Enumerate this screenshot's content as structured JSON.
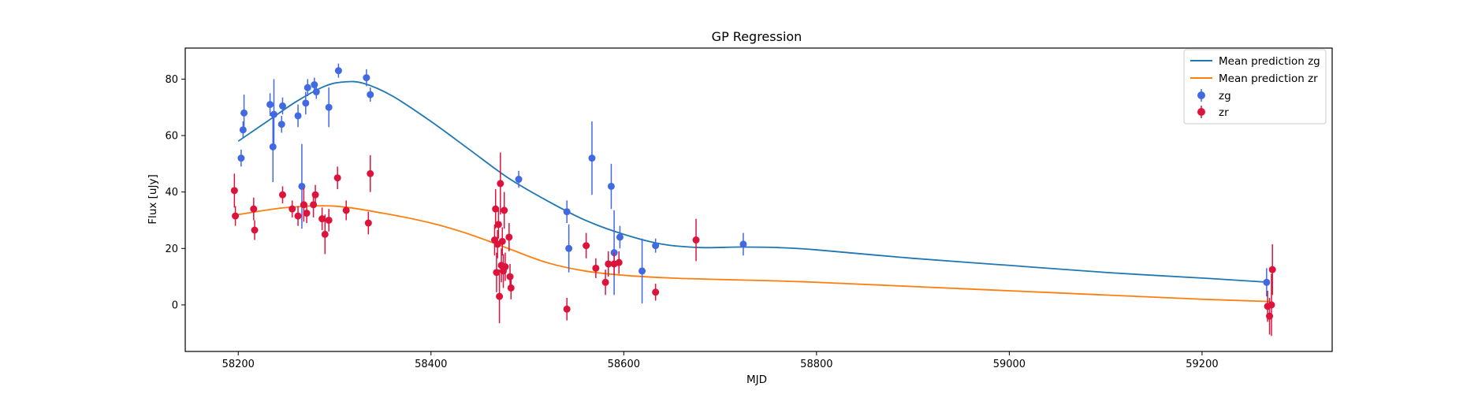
{
  "chart_data": {
    "type": "scatter",
    "title": "GP Regression",
    "xlabel": "MJD",
    "ylabel": "Flux [uJy]",
    "xlim": [
      58145,
      59335
    ],
    "ylim": [
      -16.5,
      91
    ],
    "xticks": [
      58200,
      58400,
      58600,
      58800,
      59000,
      59200
    ],
    "yticks": [
      0,
      20,
      40,
      60,
      80
    ],
    "grid": false,
    "legend_position": "top-right",
    "lines": [
      {
        "name": "Mean prediction zg",
        "color": "#1f77b4",
        "x": [
          58200,
          58230,
          58260,
          58290,
          58310,
          58330,
          58360,
          58400,
          58440,
          58480,
          58520,
          58560,
          58600,
          58640,
          58680,
          58720,
          58760,
          58800,
          58900,
          59000,
          59100,
          59200,
          59270
        ],
        "y": [
          58,
          65,
          72,
          77.5,
          79,
          78.5,
          74,
          65,
          55,
          45,
          37,
          30,
          25,
          21.5,
          20.3,
          20.5,
          20.3,
          19.5,
          16.5,
          14,
          11.5,
          9.5,
          8
        ]
      },
      {
        "name": "Mean prediction zr",
        "color": "#ff7f0e",
        "x": [
          58200,
          58250,
          58300,
          58350,
          58400,
          58440,
          58480,
          58520,
          58560,
          58600,
          58650,
          58700,
          58760,
          58800,
          58900,
          59000,
          59100,
          59200,
          59270
        ],
        "y": [
          32,
          34.5,
          35,
          32.5,
          29,
          25,
          20,
          15,
          12,
          10.5,
          9.5,
          9,
          8.5,
          8,
          6.5,
          5,
          3.5,
          2,
          1.2
        ]
      }
    ],
    "series": [
      {
        "name": "zg",
        "color": "#4169e1",
        "points": [
          {
            "x": 58203,
            "y": 52,
            "err": 3
          },
          {
            "x": 58205,
            "y": 62,
            "err": 3
          },
          {
            "x": 58206,
            "y": 68,
            "err": 6.5
          },
          {
            "x": 58233,
            "y": 71,
            "err": 4
          },
          {
            "x": 58236,
            "y": 56,
            "err": 12.5
          },
          {
            "x": 58237,
            "y": 67.5,
            "err": 12.5
          },
          {
            "x": 58245,
            "y": 64,
            "err": 3
          },
          {
            "x": 58246,
            "y": 70.5,
            "err": 3
          },
          {
            "x": 58262,
            "y": 67,
            "err": 4
          },
          {
            "x": 58266,
            "y": 42,
            "err": 15
          },
          {
            "x": 58270,
            "y": 71.5,
            "err": 4
          },
          {
            "x": 58272,
            "y": 77,
            "err": 3
          },
          {
            "x": 58279,
            "y": 78,
            "err": 2.5
          },
          {
            "x": 58281,
            "y": 75.5,
            "err": 2.5
          },
          {
            "x": 58294,
            "y": 70,
            "err": 7
          },
          {
            "x": 58304,
            "y": 83,
            "err": 2.5
          },
          {
            "x": 58333,
            "y": 80.5,
            "err": 3
          },
          {
            "x": 58337,
            "y": 74.5,
            "err": 2.5
          },
          {
            "x": 58491,
            "y": 44.5,
            "err": 3
          },
          {
            "x": 58541,
            "y": 33,
            "err": 4
          },
          {
            "x": 58543,
            "y": 20,
            "err": 8.5
          },
          {
            "x": 58567,
            "y": 52,
            "err": 13
          },
          {
            "x": 58587,
            "y": 42,
            "err": 8
          },
          {
            "x": 58590,
            "y": 18.5,
            "err": 15
          },
          {
            "x": 58596,
            "y": 24,
            "err": 4
          },
          {
            "x": 58619,
            "y": 12,
            "err": 11.5
          },
          {
            "x": 58633,
            "y": 21,
            "err": 2.5
          },
          {
            "x": 58724,
            "y": 21.5,
            "err": 4
          },
          {
            "x": 59267,
            "y": 8,
            "err": 5
          }
        ]
      },
      {
        "name": "zr",
        "color": "#dc143c",
        "points": [
          {
            "x": 58196,
            "y": 40.5,
            "err": 6
          },
          {
            "x": 58197,
            "y": 31.5,
            "err": 3.5
          },
          {
            "x": 58216,
            "y": 34,
            "err": 4
          },
          {
            "x": 58217,
            "y": 26.5,
            "err": 3.5
          },
          {
            "x": 58246,
            "y": 39,
            "err": 3
          },
          {
            "x": 58256,
            "y": 34,
            "err": 3
          },
          {
            "x": 58262,
            "y": 31.5,
            "err": 3.5
          },
          {
            "x": 58268,
            "y": 35.5,
            "err": 6
          },
          {
            "x": 58271,
            "y": 32.5,
            "err": 3.5
          },
          {
            "x": 58278,
            "y": 35.5,
            "err": 4.5
          },
          {
            "x": 58280,
            "y": 39,
            "err": 3.5
          },
          {
            "x": 58287,
            "y": 30.5,
            "err": 4
          },
          {
            "x": 58290,
            "y": 25,
            "err": 7
          },
          {
            "x": 58294,
            "y": 30,
            "err": 4
          },
          {
            "x": 58303,
            "y": 45,
            "err": 4
          },
          {
            "x": 58312,
            "y": 33.5,
            "err": 3.5
          },
          {
            "x": 58335,
            "y": 29,
            "err": 4
          },
          {
            "x": 58337,
            "y": 46.5,
            "err": 6.5
          },
          {
            "x": 58466,
            "y": 23,
            "err": 5.5
          },
          {
            "x": 58467,
            "y": 34,
            "err": 7
          },
          {
            "x": 58468,
            "y": 11.5,
            "err": 7
          },
          {
            "x": 58469,
            "y": 21.5,
            "err": 5
          },
          {
            "x": 58470,
            "y": 28.5,
            "err": 5
          },
          {
            "x": 58471,
            "y": 3,
            "err": 9.5
          },
          {
            "x": 58472,
            "y": 43,
            "err": 11
          },
          {
            "x": 58473,
            "y": 14,
            "err": 6
          },
          {
            "x": 58474,
            "y": 22.5,
            "err": 5
          },
          {
            "x": 58475,
            "y": 12,
            "err": 6
          },
          {
            "x": 58476,
            "y": 33.5,
            "err": 6.5
          },
          {
            "x": 58477,
            "y": 13.5,
            "err": 5
          },
          {
            "x": 58481,
            "y": 24,
            "err": 5
          },
          {
            "x": 58482,
            "y": 10,
            "err": 4.5
          },
          {
            "x": 58483,
            "y": 6,
            "err": 4
          },
          {
            "x": 58541,
            "y": -1.5,
            "err": 4
          },
          {
            "x": 58561,
            "y": 21,
            "err": 4.5
          },
          {
            "x": 58571,
            "y": 13,
            "err": 3.5
          },
          {
            "x": 58581,
            "y": 8,
            "err": 4.5
          },
          {
            "x": 58584,
            "y": 14.5,
            "err": 4.5
          },
          {
            "x": 58590,
            "y": 14.5,
            "err": 4
          },
          {
            "x": 58595,
            "y": 15,
            "err": 4
          },
          {
            "x": 58633,
            "y": 4.5,
            "err": 3
          },
          {
            "x": 58675,
            "y": 23,
            "err": 7.5
          },
          {
            "x": 59268,
            "y": -0.5,
            "err": 5.5
          },
          {
            "x": 59270,
            "y": -4,
            "err": 6.5
          },
          {
            "x": 59272,
            "y": 0,
            "err": 11
          },
          {
            "x": 59273,
            "y": 12.5,
            "err": 9
          }
        ]
      }
    ]
  },
  "legend": {
    "zg_line": "Mean prediction zg",
    "zr_line": "Mean prediction zr",
    "zg_points": "zg",
    "zr_points": "zr"
  }
}
